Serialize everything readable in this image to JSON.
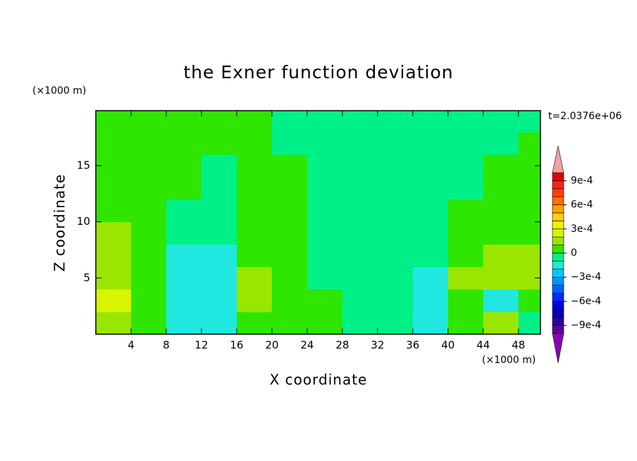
{
  "chart_data": {
    "type": "contour",
    "title": "the Exner function deviation",
    "x_label": "X coordinate",
    "y_label": "Z coordinate",
    "x_unit": "(×1000 m)",
    "y_unit": "(×1000 m)",
    "annotation": "t=2.0376e+06",
    "xlim": [
      0,
      50.5
    ],
    "ylim": [
      0,
      19.9
    ],
    "xticks": [
      4,
      8,
      12,
      16,
      20,
      24,
      28,
      32,
      36,
      40,
      44,
      48
    ],
    "yticks": [
      5,
      10,
      15
    ],
    "x": [
      2,
      6,
      10,
      14,
      18,
      22,
      26,
      30,
      34,
      38,
      42,
      46,
      50
    ],
    "y": [
      1,
      3,
      5,
      7,
      9,
      11,
      13,
      15,
      17,
      19
    ],
    "z": [
      [
        0.00015,
        5e-05,
        -0.00015,
        -0.00015,
        5e-05,
        5e-05,
        5e-05,
        -5e-05,
        -5e-05,
        -0.00015,
        5e-05,
        0.00015,
        -5e-05
      ],
      [
        0.00025,
        5e-05,
        -0.00015,
        -0.00015,
        0.00015,
        5e-05,
        5e-05,
        -5e-05,
        -5e-05,
        -0.00015,
        5e-05,
        -0.00015,
        5e-05
      ],
      [
        0.00015,
        5e-05,
        -0.00015,
        -0.00015,
        0.00015,
        5e-05,
        -5e-05,
        -5e-05,
        -5e-05,
        -0.00015,
        0.00015,
        0.00015,
        0.00015
      ],
      [
        0.00015,
        5e-05,
        -0.00015,
        -0.00015,
        5e-05,
        5e-05,
        -5e-05,
        -5e-05,
        -5e-05,
        -5e-05,
        5e-05,
        0.00015,
        0.00015
      ],
      [
        0.00015,
        5e-05,
        -5e-05,
        -5e-05,
        5e-05,
        5e-05,
        -5e-05,
        -5e-05,
        -5e-05,
        -5e-05,
        5e-05,
        5e-05,
        5e-05
      ],
      [
        5e-05,
        5e-05,
        -5e-05,
        -5e-05,
        5e-05,
        5e-05,
        -5e-05,
        -5e-05,
        -5e-05,
        -5e-05,
        5e-05,
        5e-05,
        5e-05
      ],
      [
        5e-05,
        5e-05,
        5e-05,
        -5e-05,
        5e-05,
        5e-05,
        -5e-05,
        -5e-05,
        -5e-05,
        -5e-05,
        -5e-05,
        5e-05,
        5e-05
      ],
      [
        5e-05,
        5e-05,
        5e-05,
        -5e-05,
        5e-05,
        5e-05,
        -5e-05,
        -5e-05,
        -5e-05,
        -5e-05,
        -5e-05,
        5e-05,
        5e-05
      ],
      [
        5e-05,
        5e-05,
        5e-05,
        5e-05,
        5e-05,
        -5e-05,
        -5e-05,
        -5e-05,
        -5e-05,
        -5e-05,
        -5e-05,
        -5e-05,
        5e-05
      ],
      [
        5e-05,
        5e-05,
        5e-05,
        5e-05,
        5e-05,
        -5e-05,
        -5e-05,
        -5e-05,
        -5e-05,
        -5e-05,
        -5e-05,
        -5e-05,
        -5e-05
      ]
    ],
    "levels": [
      -0.001,
      -0.0009,
      -0.0008,
      -0.0007,
      -0.0006,
      -0.0005,
      -0.0004,
      -0.0003,
      -0.0002,
      -0.0001,
      0,
      0.0001,
      0.0002,
      0.0003,
      0.0004,
      0.0005,
      0.0006,
      0.0007,
      0.0008,
      0.0009,
      0.001
    ],
    "colors": [
      "#5a009a",
      "#2a00a0",
      "#0000b4",
      "#0000dc",
      "#0028ff",
      "#0060ff",
      "#0096ff",
      "#00c8ff",
      "#20e8e0",
      "#00f088",
      "#2ee600",
      "#9ae600",
      "#d8f500",
      "#f0f000",
      "#ffd200",
      "#ffa000",
      "#ff7000",
      "#ff4000",
      "#ff1e1e",
      "#e00000"
    ],
    "extend_colors": [
      "#8c00b4",
      "#f5a0a0"
    ],
    "colorbar_ticks": [
      {
        "value": -0.0009,
        "label": "−9e-4"
      },
      {
        "value": -0.0006,
        "label": "−6e-4"
      },
      {
        "value": -0.0003,
        "label": "−3e-4"
      },
      0,
      {
        "value": 0.0003,
        "label": "3e-4"
      },
      {
        "value": 0.0006,
        "label": "6e-4"
      },
      {
        "value": 0.0009,
        "label": "9e-4"
      }
    ]
  }
}
